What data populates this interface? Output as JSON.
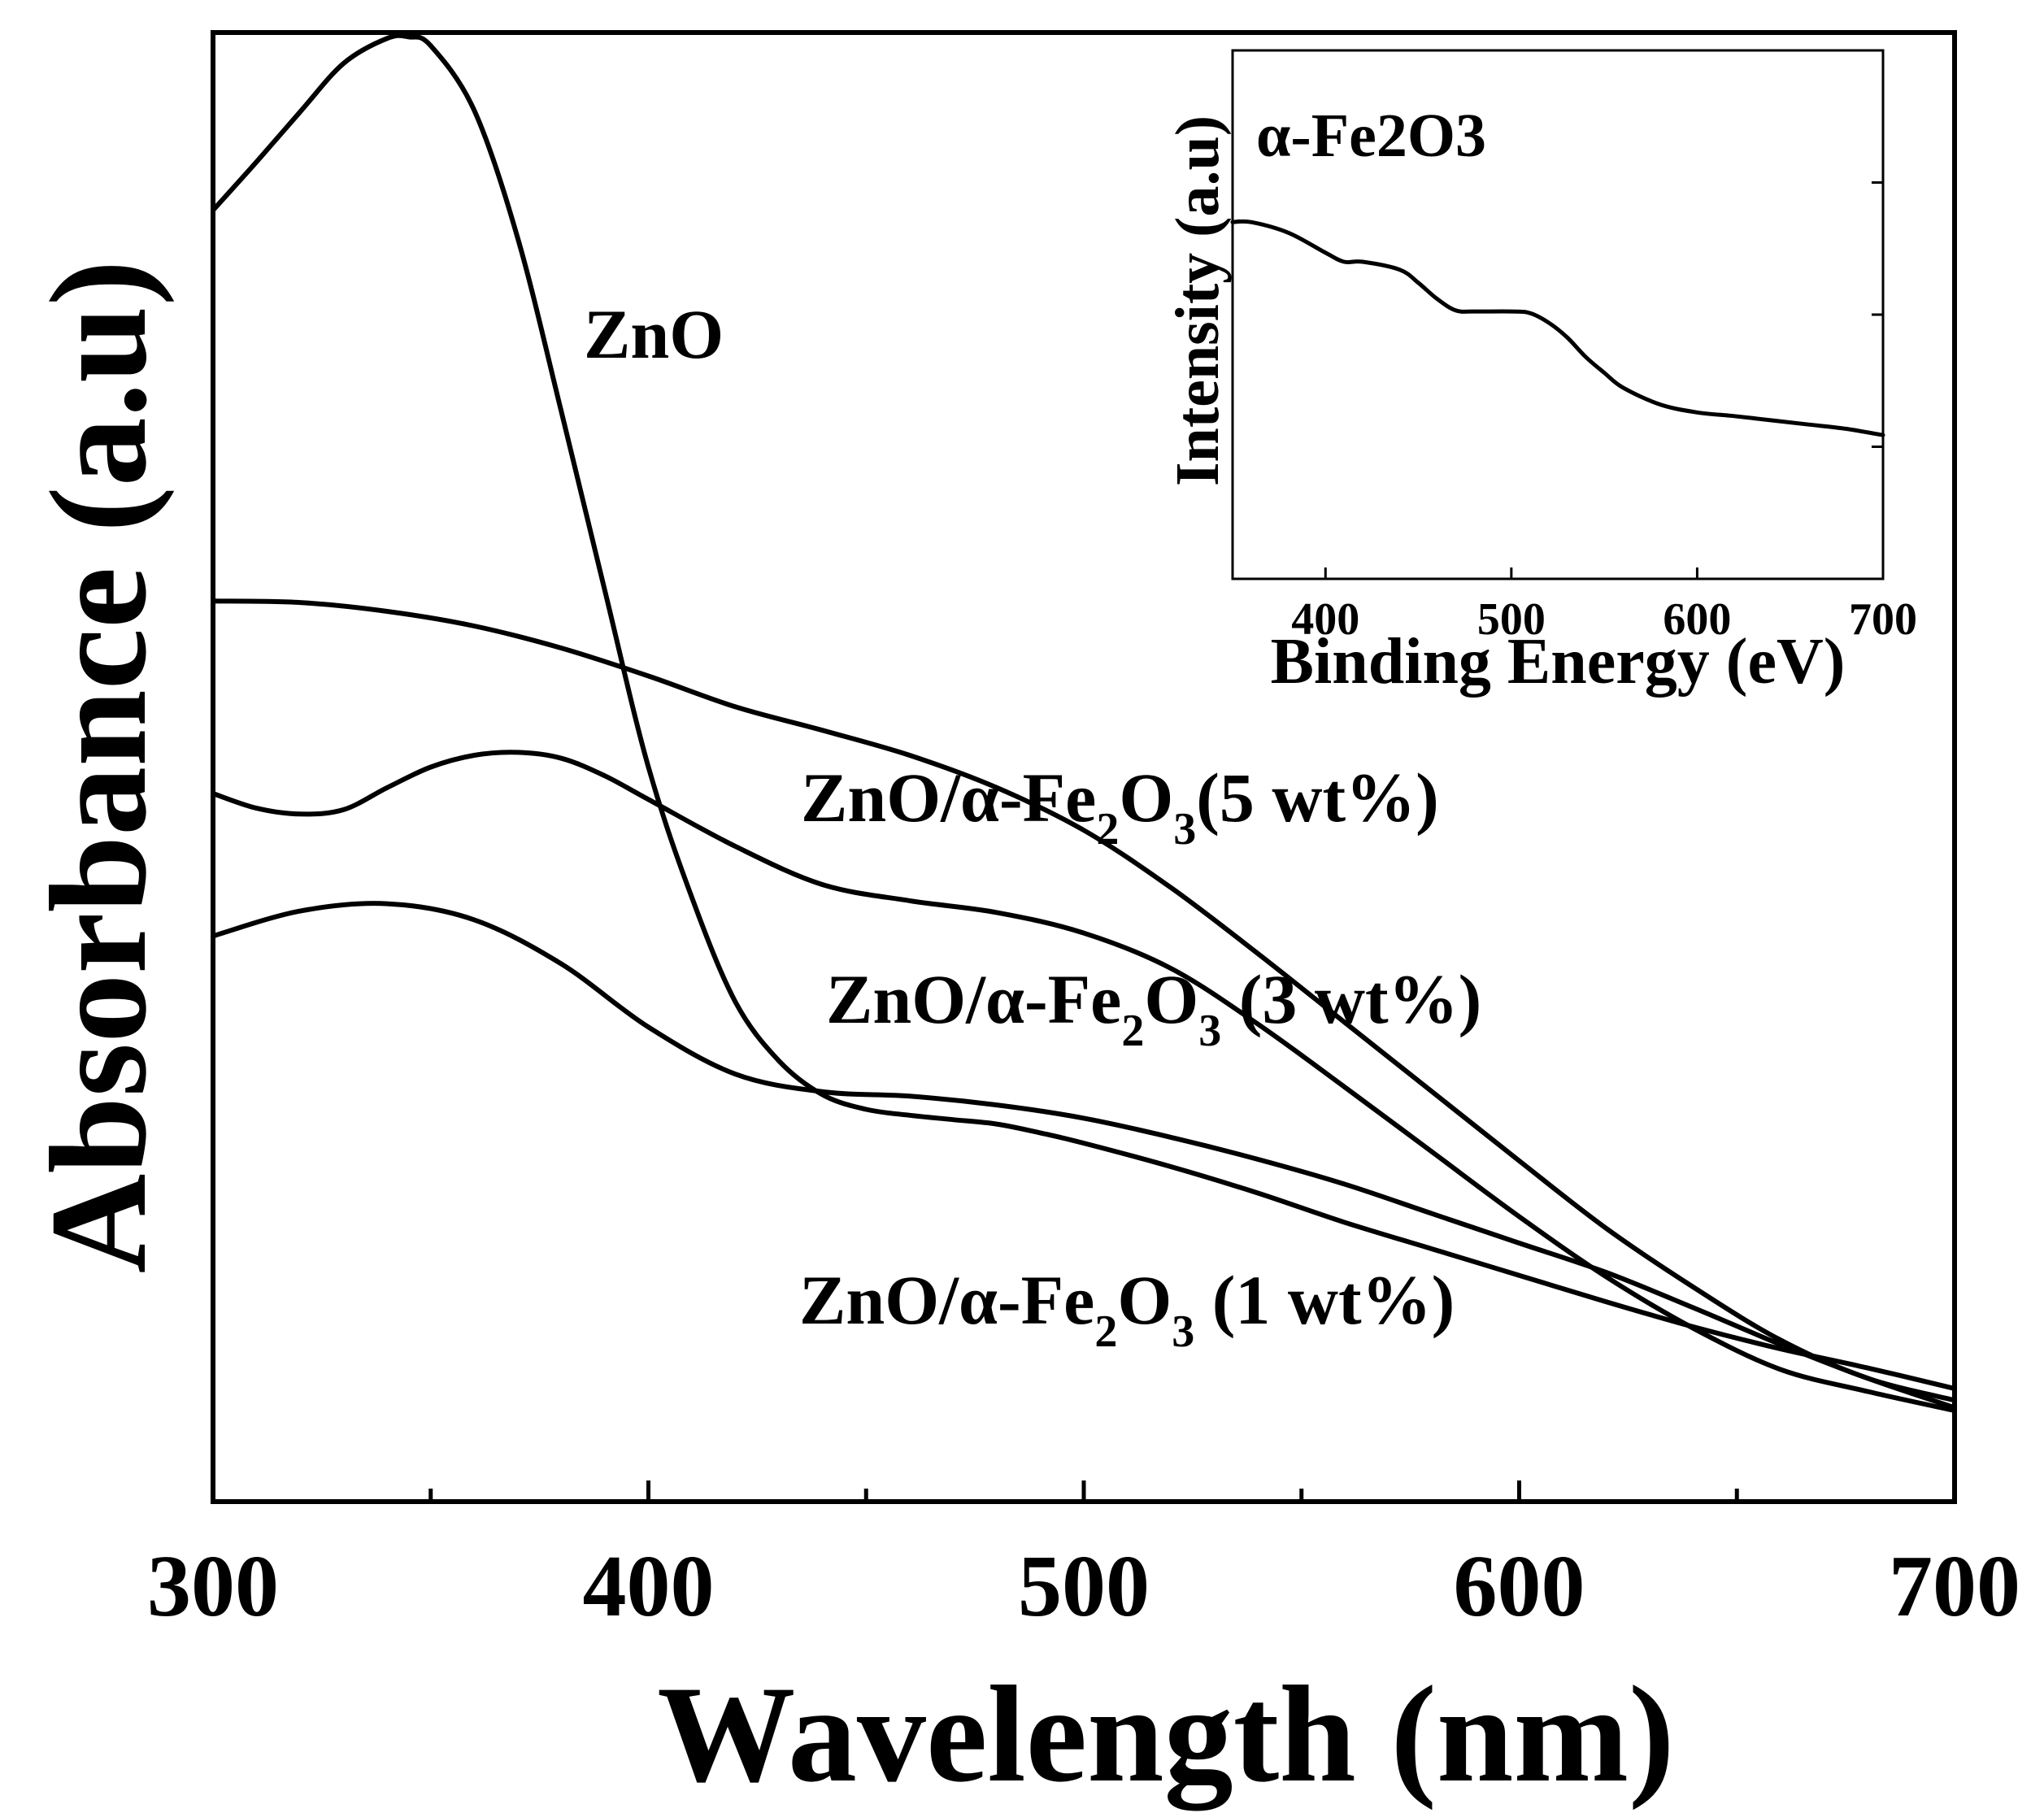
{
  "chart_data": [
    {
      "type": "line",
      "title": "",
      "xlabel": "Wavelength (nm)",
      "ylabel": "Absorbance (a.u)",
      "xlim": [
        300,
        700
      ],
      "ylim": [
        0,
        1
      ],
      "xticks": [
        300,
        400,
        500,
        600,
        700
      ],
      "minor_xticks": [
        350,
        450,
        550,
        650
      ],
      "grid": false,
      "series": [
        {
          "name": "ZnO",
          "label_text": "ZnO",
          "x": [
            300,
            310,
            320,
            330,
            340,
            345,
            350,
            360,
            370,
            380,
            390,
            400,
            410,
            420,
            430,
            440,
            450,
            460,
            470,
            480,
            490,
            500,
            520,
            540,
            560,
            580,
            600,
            620,
            640,
            660,
            680,
            700
          ],
          "y": [
            0.879,
            0.912,
            0.946,
            0.979,
            0.996,
            0.997,
            0.991,
            0.947,
            0.86,
            0.742,
            0.62,
            0.5,
            0.411,
            0.34,
            0.3,
            0.277,
            0.267,
            0.263,
            0.26,
            0.257,
            0.251,
            0.244,
            0.228,
            0.21,
            0.19,
            0.172,
            0.154,
            0.136,
            0.119,
            0.104,
            0.091,
            0.077
          ]
        },
        {
          "name": "ZnO/α-Fe2O3 (5 wt%)",
          "label_parts": [
            "ZnO/α-Fe",
            "2",
            "O",
            "3",
            "(5 wt%)"
          ],
          "x": [
            300,
            320,
            340,
            360,
            380,
            400,
            420,
            440,
            460,
            480,
            500,
            520,
            540,
            560,
            580,
            600,
            620,
            640,
            660,
            680,
            700
          ],
          "y": [
            0.613,
            0.612,
            0.606,
            0.596,
            0.581,
            0.562,
            0.541,
            0.525,
            0.508,
            0.486,
            0.457,
            0.418,
            0.373,
            0.326,
            0.279,
            0.232,
            0.186,
            0.146,
            0.11,
            0.084,
            0.069
          ]
        },
        {
          "name": "ZnO/α-Fe2O3 (3 wt%)",
          "label_parts": [
            "ZnO/α-Fe",
            "2",
            "O",
            "3",
            " (3 wt%)"
          ],
          "x": [
            300,
            310,
            320,
            330,
            340,
            350,
            360,
            370,
            380,
            390,
            400,
            420,
            440,
            460,
            480,
            500,
            520,
            540,
            560,
            580,
            600,
            620,
            640,
            660,
            680,
            700
          ],
          "y": [
            0.482,
            0.472,
            0.468,
            0.471,
            0.486,
            0.5,
            0.508,
            0.51,
            0.506,
            0.494,
            0.478,
            0.446,
            0.42,
            0.409,
            0.401,
            0.387,
            0.363,
            0.325,
            0.282,
            0.238,
            0.194,
            0.153,
            0.118,
            0.09,
            0.075,
            0.062
          ]
        },
        {
          "name": "ZnO/α-Fe2O3 (1 wt%)",
          "label_parts": [
            "ZnO/α-Fe",
            "2",
            "O",
            "3",
            " (1 wt%)"
          ],
          "x": [
            300,
            320,
            340,
            360,
            380,
            400,
            420,
            440,
            460,
            480,
            500,
            520,
            540,
            560,
            580,
            600,
            620,
            640,
            660,
            680,
            700
          ],
          "y": [
            0.385,
            0.402,
            0.407,
            0.396,
            0.366,
            0.323,
            0.291,
            0.279,
            0.276,
            0.27,
            0.261,
            0.248,
            0.233,
            0.216,
            0.196,
            0.176,
            0.156,
            0.132,
            0.107,
            0.084,
            0.064
          ]
        }
      ]
    },
    {
      "type": "line",
      "role": "inset",
      "title": "α-Fe2O3",
      "title_parts": [
        "α-Fe",
        "2",
        "O",
        "3"
      ],
      "xlabel": "Binding Energy (eV)",
      "ylabel": "Intensity (a.u)",
      "xlim": [
        350,
        700
      ],
      "ylim": [
        0,
        1
      ],
      "xticks": [
        400,
        500,
        600,
        700
      ],
      "grid": false,
      "series": [
        {
          "name": "α-Fe2O3",
          "x": [
            350,
            360,
            380,
            400,
            410,
            420,
            440,
            450,
            460,
            470,
            480,
            500,
            510,
            520,
            530,
            540,
            550,
            560,
            580,
            600,
            620,
            640,
            660,
            680,
            700
          ],
          "y": [
            0.675,
            0.675,
            0.655,
            0.617,
            0.6,
            0.6,
            0.585,
            0.56,
            0.53,
            0.508,
            0.506,
            0.506,
            0.503,
            0.485,
            0.457,
            0.42,
            0.39,
            0.362,
            0.33,
            0.315,
            0.308,
            0.3,
            0.292,
            0.284,
            0.272
          ]
        }
      ]
    }
  ]
}
